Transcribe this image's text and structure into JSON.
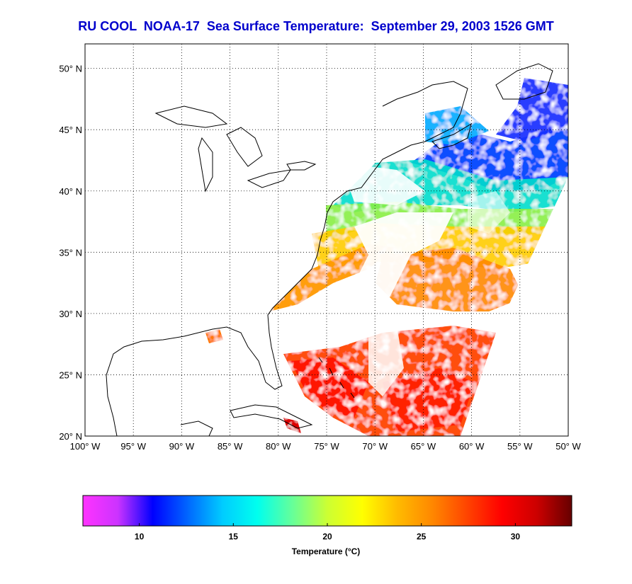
{
  "title": "RU COOL  NOAA-17  Sea Surface Temperature:  September 29, 2003 1526 GMT",
  "map": {
    "lon_range": [
      -100,
      -50
    ],
    "lat_range": [
      20,
      52
    ],
    "grid": true,
    "lat_ticks": [
      {
        "value": 20,
        "label": "20° N"
      },
      {
        "value": 25,
        "label": "25° N"
      },
      {
        "value": 30,
        "label": "30° N"
      },
      {
        "value": 35,
        "label": "35° N"
      },
      {
        "value": 40,
        "label": "40° N"
      },
      {
        "value": 45,
        "label": "45° N"
      },
      {
        "value": 50,
        "label": "50° N"
      }
    ],
    "lon_ticks": [
      {
        "value": -100,
        "label": "100° W"
      },
      {
        "value": -95,
        "label": "95° W"
      },
      {
        "value": -90,
        "label": "90° W"
      },
      {
        "value": -85,
        "label": "85° W"
      },
      {
        "value": -80,
        "label": "80° W"
      },
      {
        "value": -75,
        "label": "75° W"
      },
      {
        "value": -70,
        "label": "70° W"
      },
      {
        "value": -65,
        "label": "65° W"
      },
      {
        "value": -60,
        "label": "60° W"
      },
      {
        "value": -55,
        "label": "55° W"
      },
      {
        "value": -50,
        "label": "50° W"
      }
    ]
  },
  "colorbar": {
    "label": "Temperature (°C)",
    "range": [
      7,
      33
    ],
    "ticks": [
      {
        "value": 10,
        "label": "10"
      },
      {
        "value": 15,
        "label": "15"
      },
      {
        "value": 20,
        "label": "20"
      },
      {
        "value": 25,
        "label": "25"
      },
      {
        "value": 30,
        "label": "30"
      }
    ],
    "colors": [
      "#ff33ff",
      "#cc33ff",
      "#0000ff",
      "#0066ff",
      "#00ccff",
      "#00ffee",
      "#66ff99",
      "#ccff33",
      "#ffff00",
      "#ffbb00",
      "#ff8800",
      "#ff4400",
      "#ff0000",
      "#cc0000",
      "#660000"
    ]
  },
  "colors": {
    "title": "#0000cc",
    "coastline": "#000000"
  }
}
